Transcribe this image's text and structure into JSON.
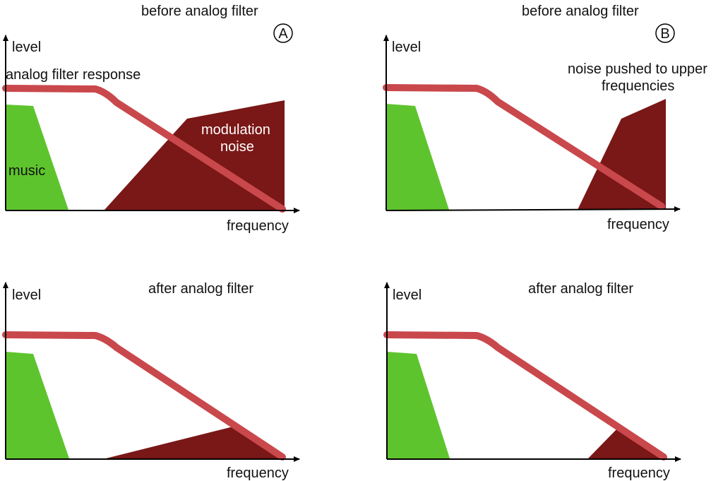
{
  "colors": {
    "music": "#5ec42e",
    "noise": "#7a1717",
    "filter": "#c9484c",
    "axis": "#000000"
  },
  "panels": [
    {
      "id": "A",
      "title": "before analog filter",
      "marker": "A",
      "y_label": "level",
      "x_label": "frequency",
      "filter_label": "analog filter response",
      "music_label": "music",
      "noise_label_line1": "modulation",
      "noise_label_line2": "noise"
    },
    {
      "id": "B",
      "title": "before analog filter",
      "marker": "B",
      "y_label": "level",
      "x_label": "frequency",
      "noise_label_line1": "noise pushed to upper",
      "noise_label_line2": "frequencies"
    },
    {
      "id": "C",
      "title": "after analog filter",
      "y_label": "level",
      "x_label": "frequency"
    },
    {
      "id": "D",
      "title": "after analog filter",
      "y_label": "level",
      "x_label": "frequency"
    }
  ]
}
